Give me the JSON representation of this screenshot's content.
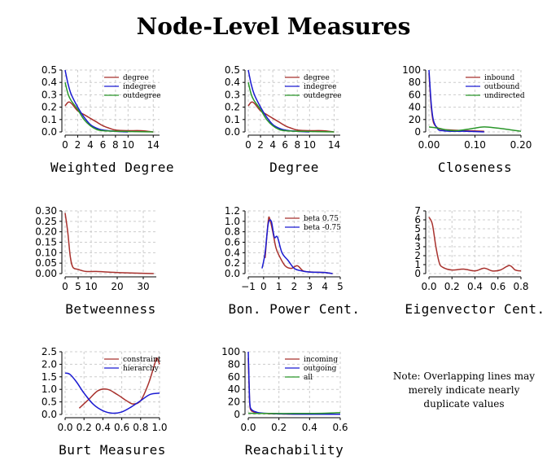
{
  "title": "Node-Level Measures",
  "note": [
    "Note: Overlapping lines may",
    "merely indicate nearly",
    "duplicate values"
  ],
  "colors": {
    "red": "#a8312d",
    "blue": "#1a1ad2",
    "green": "#2a962a",
    "grid": "#cccccc"
  },
  "chart_data": [
    {
      "type": "line",
      "xlabel": "Weighted Degree",
      "xlim": [
        0,
        15
      ],
      "ylim": [
        0,
        0.5
      ],
      "xticks": [
        0,
        2,
        4,
        6,
        8,
        10,
        14
      ],
      "yticks": [
        0.0,
        0.1,
        0.2,
        0.3,
        0.4,
        0.5
      ],
      "ytick_labels": [
        "0.0",
        "0.1",
        "0.2",
        "0.3",
        "0.4",
        "0.5"
      ],
      "grid": true,
      "legend": "top-right",
      "series": [
        {
          "name": "degree",
          "color": "red",
          "points": [
            [
              0,
              0.21
            ],
            [
              0.5,
              0.24
            ],
            [
              1,
              0.23
            ],
            [
              2,
              0.17
            ],
            [
              3,
              0.14
            ],
            [
              4,
              0.11
            ],
            [
              5,
              0.08
            ],
            [
              6,
              0.05
            ],
            [
              7,
              0.03
            ],
            [
              8,
              0.015
            ],
            [
              10,
              0.01
            ],
            [
              12,
              0.01
            ],
            [
              14,
              0.0
            ]
          ]
        },
        {
          "name": "indegree",
          "color": "blue",
          "points": [
            [
              0,
              0.5
            ],
            [
              0.5,
              0.38
            ],
            [
              1,
              0.3
            ],
            [
              2,
              0.2
            ],
            [
              3,
              0.12
            ],
            [
              4,
              0.06
            ],
            [
              5,
              0.03
            ],
            [
              6,
              0.015
            ],
            [
              8,
              0.005
            ],
            [
              10,
              0.0
            ]
          ]
        },
        {
          "name": "outdegree",
          "color": "green",
          "points": [
            [
              0,
              0.4
            ],
            [
              0.5,
              0.3
            ],
            [
              1,
              0.25
            ],
            [
              2,
              0.18
            ],
            [
              3,
              0.1
            ],
            [
              4,
              0.05
            ],
            [
              5,
              0.02
            ],
            [
              6,
              0.01
            ],
            [
              8,
              0.005
            ],
            [
              14,
              0.0
            ]
          ]
        }
      ]
    },
    {
      "type": "line",
      "xlabel": "Degree",
      "xlim": [
        0,
        15
      ],
      "ylim": [
        0,
        0.5
      ],
      "xticks": [
        0,
        2,
        4,
        6,
        8,
        10,
        14
      ],
      "yticks": [
        0.0,
        0.1,
        0.2,
        0.3,
        0.4,
        0.5
      ],
      "ytick_labels": [
        "0.0",
        "0.1",
        "0.2",
        "0.3",
        "0.4",
        "0.5"
      ],
      "grid": true,
      "legend": "top-right",
      "series": [
        {
          "name": "degree",
          "color": "red",
          "points": [
            [
              0,
              0.21
            ],
            [
              0.5,
              0.24
            ],
            [
              1,
              0.23
            ],
            [
              2,
              0.17
            ],
            [
              3,
              0.14
            ],
            [
              4,
              0.11
            ],
            [
              5,
              0.08
            ],
            [
              6,
              0.05
            ],
            [
              7,
              0.03
            ],
            [
              8,
              0.015
            ],
            [
              10,
              0.01
            ],
            [
              12,
              0.01
            ],
            [
              14,
              0.0
            ]
          ]
        },
        {
          "name": "indegree",
          "color": "blue",
          "points": [
            [
              0,
              0.5
            ],
            [
              0.5,
              0.38
            ],
            [
              1,
              0.3
            ],
            [
              2,
              0.2
            ],
            [
              3,
              0.12
            ],
            [
              4,
              0.06
            ],
            [
              5,
              0.03
            ],
            [
              6,
              0.015
            ],
            [
              8,
              0.005
            ],
            [
              10,
              0.0
            ]
          ]
        },
        {
          "name": "outdegree",
          "color": "green",
          "points": [
            [
              0,
              0.4
            ],
            [
              0.5,
              0.3
            ],
            [
              1,
              0.25
            ],
            [
              2,
              0.18
            ],
            [
              3,
              0.1
            ],
            [
              4,
              0.05
            ],
            [
              5,
              0.02
            ],
            [
              6,
              0.01
            ],
            [
              8,
              0.005
            ],
            [
              14,
              0.0
            ]
          ]
        }
      ]
    },
    {
      "type": "line",
      "xlabel": "Closeness",
      "xlim": [
        0,
        0.2
      ],
      "ylim": [
        0,
        100
      ],
      "xticks": [
        0.0,
        0.1,
        0.2
      ],
      "xtick_labels": [
        "0.00",
        "0.10",
        "0.20"
      ],
      "yticks": [
        0,
        20,
        40,
        60,
        80,
        100
      ],
      "ytick_labels": [
        "0",
        "20",
        "40",
        "60",
        "80",
        "100"
      ],
      "grid": true,
      "legend": "top-right",
      "series": [
        {
          "name": "inbound",
          "color": "red",
          "points": [
            [
              0,
              95
            ],
            [
              0.005,
              40
            ],
            [
              0.01,
              15
            ],
            [
              0.02,
              6
            ],
            [
              0.03,
              4
            ],
            [
              0.05,
              3
            ],
            [
              0.08,
              2
            ],
            [
              0.12,
              1
            ]
          ]
        },
        {
          "name": "outbound",
          "color": "blue",
          "points": [
            [
              0,
              100
            ],
            [
              0.005,
              45
            ],
            [
              0.01,
              18
            ],
            [
              0.02,
              4
            ],
            [
              0.03,
              2
            ],
            [
              0.05,
              1
            ],
            [
              0.08,
              1
            ],
            [
              0.12,
              0
            ]
          ]
        },
        {
          "name": "undirected",
          "color": "green",
          "points": [
            [
              0,
              8
            ],
            [
              0.02,
              6
            ],
            [
              0.04,
              3
            ],
            [
              0.06,
              2
            ],
            [
              0.09,
              5
            ],
            [
              0.12,
              8
            ],
            [
              0.15,
              6
            ],
            [
              0.2,
              1
            ]
          ]
        }
      ]
    },
    {
      "type": "line",
      "xlabel": "Betweenness",
      "xlim": [
        0,
        35
      ],
      "ylim": [
        0,
        0.3
      ],
      "xticks": [
        0,
        5,
        10,
        20,
        30
      ],
      "yticks": [
        0.0,
        0.05,
        0.1,
        0.15,
        0.2,
        0.25,
        0.3
      ],
      "ytick_labels": [
        "0.00",
        "0.05",
        "0.10",
        "0.15",
        "0.20",
        "0.25",
        "0.30"
      ],
      "grid": true,
      "legend": "none",
      "series": [
        {
          "name": "",
          "color": "red",
          "points": [
            [
              0,
              0.29
            ],
            [
              1,
              0.2
            ],
            [
              2,
              0.08
            ],
            [
              3,
              0.03
            ],
            [
              5,
              0.02
            ],
            [
              8,
              0.01
            ],
            [
              12,
              0.01
            ],
            [
              20,
              0.005
            ],
            [
              34,
              0.0
            ]
          ]
        }
      ]
    },
    {
      "type": "line",
      "xlabel": "Bon. Power Cent.",
      "xlim": [
        -1,
        5
      ],
      "ylim": [
        0,
        1.2
      ],
      "xticks": [
        -1,
        0,
        1,
        2,
        3,
        4,
        5
      ],
      "xtick_labels": [
        "−1",
        "0",
        "1",
        "2",
        "3",
        "4",
        "5"
      ],
      "yticks": [
        0.0,
        0.2,
        0.4,
        0.6,
        0.8,
        1.0,
        1.2
      ],
      "ytick_labels": [
        "0.0",
        "0.2",
        "0.4",
        "0.6",
        "0.8",
        "1.0",
        "1.2"
      ],
      "grid": true,
      "legend": "top-right",
      "series": [
        {
          "name": "beta 0.75",
          "color": "red",
          "points": [
            [
              0.1,
              0.3
            ],
            [
              0.3,
              1.0
            ],
            [
              0.4,
              1.05
            ],
            [
              0.6,
              0.8
            ],
            [
              0.8,
              0.5
            ],
            [
              1.0,
              0.35
            ],
            [
              1.4,
              0.15
            ],
            [
              1.8,
              0.1
            ],
            [
              2.2,
              0.15
            ],
            [
              2.6,
              0.05
            ],
            [
              3.2,
              0.03
            ],
            [
              4.0,
              0.02
            ],
            [
              4.5,
              0.0
            ]
          ]
        },
        {
          "name": "beta -0.75",
          "color": "blue",
          "points": [
            [
              -0.1,
              0.1
            ],
            [
              0.1,
              0.4
            ],
            [
              0.3,
              0.95
            ],
            [
              0.5,
              1.0
            ],
            [
              0.7,
              0.7
            ],
            [
              0.9,
              0.7
            ],
            [
              1.2,
              0.4
            ],
            [
              1.6,
              0.25
            ],
            [
              2.0,
              0.1
            ],
            [
              2.5,
              0.05
            ],
            [
              3.0,
              0.03
            ],
            [
              4.0,
              0.02
            ],
            [
              4.5,
              0.0
            ]
          ]
        }
      ]
    },
    {
      "type": "line",
      "xlabel": "Eigenvector Cent.",
      "xlim": [
        0,
        0.8
      ],
      "ylim": [
        0,
        7
      ],
      "xticks": [
        0.0,
        0.2,
        0.4,
        0.6,
        0.8
      ],
      "xtick_labels": [
        "0.0",
        "0.2",
        "0.4",
        "0.6",
        "0.8"
      ],
      "yticks": [
        0,
        1,
        2,
        3,
        4,
        5,
        6,
        7
      ],
      "ytick_labels": [
        "0",
        "1",
        "2",
        "3",
        "4",
        "5",
        "6",
        "7"
      ],
      "grid": true,
      "legend": "none",
      "series": [
        {
          "name": "",
          "color": "red",
          "points": [
            [
              0,
              6.3
            ],
            [
              0.03,
              5.5
            ],
            [
              0.06,
              3.0
            ],
            [
              0.09,
              1.2
            ],
            [
              0.12,
              0.7
            ],
            [
              0.2,
              0.4
            ],
            [
              0.3,
              0.5
            ],
            [
              0.4,
              0.3
            ],
            [
              0.48,
              0.6
            ],
            [
              0.55,
              0.3
            ],
            [
              0.62,
              0.4
            ],
            [
              0.7,
              0.9
            ],
            [
              0.75,
              0.4
            ],
            [
              0.8,
              0.3
            ]
          ]
        }
      ]
    },
    {
      "type": "line",
      "xlabel": "Burt Measures",
      "xlim": [
        0,
        1.0
      ],
      "ylim": [
        0,
        2.5
      ],
      "xticks": [
        0.0,
        0.2,
        0.4,
        0.6,
        0.8,
        1.0
      ],
      "xtick_labels": [
        "0.0",
        "0.2",
        "0.4",
        "0.6",
        "0.8",
        "1.0"
      ],
      "yticks": [
        0.0,
        0.5,
        1.0,
        1.5,
        2.0,
        2.5
      ],
      "ytick_labels": [
        "0.0",
        "0.5",
        "1.0",
        "1.5",
        "2.0",
        "2.5"
      ],
      "grid": true,
      "legend": "top-right",
      "series": [
        {
          "name": "constraint",
          "color": "red",
          "points": [
            [
              0.15,
              0.25
            ],
            [
              0.25,
              0.6
            ],
            [
              0.35,
              0.95
            ],
            [
              0.45,
              1.0
            ],
            [
              0.55,
              0.8
            ],
            [
              0.65,
              0.55
            ],
            [
              0.72,
              0.42
            ],
            [
              0.8,
              0.55
            ],
            [
              0.88,
              1.2
            ],
            [
              0.94,
              1.9
            ],
            [
              0.97,
              2.25
            ],
            [
              1.0,
              2.0
            ]
          ]
        },
        {
          "name": "hierarchy",
          "color": "blue",
          "points": [
            [
              0.0,
              1.65
            ],
            [
              0.05,
              1.6
            ],
            [
              0.12,
              1.3
            ],
            [
              0.2,
              0.85
            ],
            [
              0.3,
              0.4
            ],
            [
              0.4,
              0.15
            ],
            [
              0.5,
              0.05
            ],
            [
              0.6,
              0.1
            ],
            [
              0.7,
              0.3
            ],
            [
              0.8,
              0.55
            ],
            [
              0.9,
              0.8
            ],
            [
              1.0,
              0.85
            ]
          ]
        }
      ]
    },
    {
      "type": "line",
      "xlabel": "Reachability",
      "xlim": [
        0,
        0.6
      ],
      "ylim": [
        0,
        100
      ],
      "xticks": [
        0.0,
        0.2,
        0.4,
        0.6
      ],
      "xtick_labels": [
        "0.0",
        "0.2",
        "0.4",
        "0.6"
      ],
      "yticks": [
        0,
        20,
        40,
        60,
        80,
        100
      ],
      "ytick_labels": [
        "0",
        "20",
        "40",
        "60",
        "80",
        "100"
      ],
      "grid": true,
      "legend": "top-right",
      "series": [
        {
          "name": "incoming",
          "color": "red",
          "points": [
            [
              0.0,
              90
            ],
            [
              0.005,
              50
            ],
            [
              0.01,
              15
            ],
            [
              0.02,
              6
            ],
            [
              0.05,
              3
            ],
            [
              0.1,
              1.5
            ],
            [
              0.3,
              0.5
            ],
            [
              0.6,
              0.3
            ]
          ]
        },
        {
          "name": "outgoing",
          "color": "blue",
          "points": [
            [
              0.0,
              100
            ],
            [
              0.005,
              55
            ],
            [
              0.01,
              18
            ],
            [
              0.02,
              8
            ],
            [
              0.05,
              4
            ],
            [
              0.1,
              2
            ],
            [
              0.3,
              0.5
            ],
            [
              0.6,
              0.2
            ]
          ]
        },
        {
          "name": "all",
          "color": "green",
          "points": [
            [
              0.0,
              2
            ],
            [
              0.1,
              1.5
            ],
            [
              0.3,
              1.5
            ],
            [
              0.5,
              2
            ],
            [
              0.6,
              3
            ]
          ]
        }
      ]
    }
  ]
}
